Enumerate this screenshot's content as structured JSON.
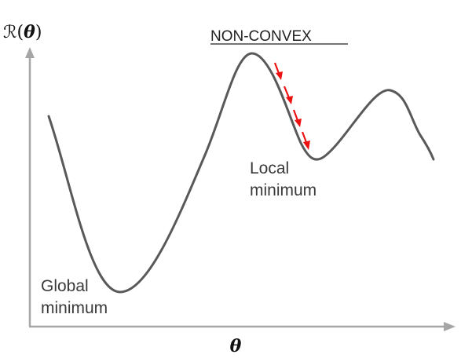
{
  "title": "NON-CONVEX",
  "y_axis_label": {
    "symbol": "ℛ(",
    "theta": "θ",
    "close": ")"
  },
  "x_axis_label": "θ",
  "local_minimum_label": {
    "line1": "Local",
    "line2": "minimum"
  },
  "global_minimum_label": {
    "line1": "Global",
    "line2": "minimum"
  },
  "colors": {
    "curve": "#595959",
    "axis": "#a6a6a6",
    "gradient_step_arrows": "#ee1111"
  },
  "gradient_step_arrow_count": 4
}
